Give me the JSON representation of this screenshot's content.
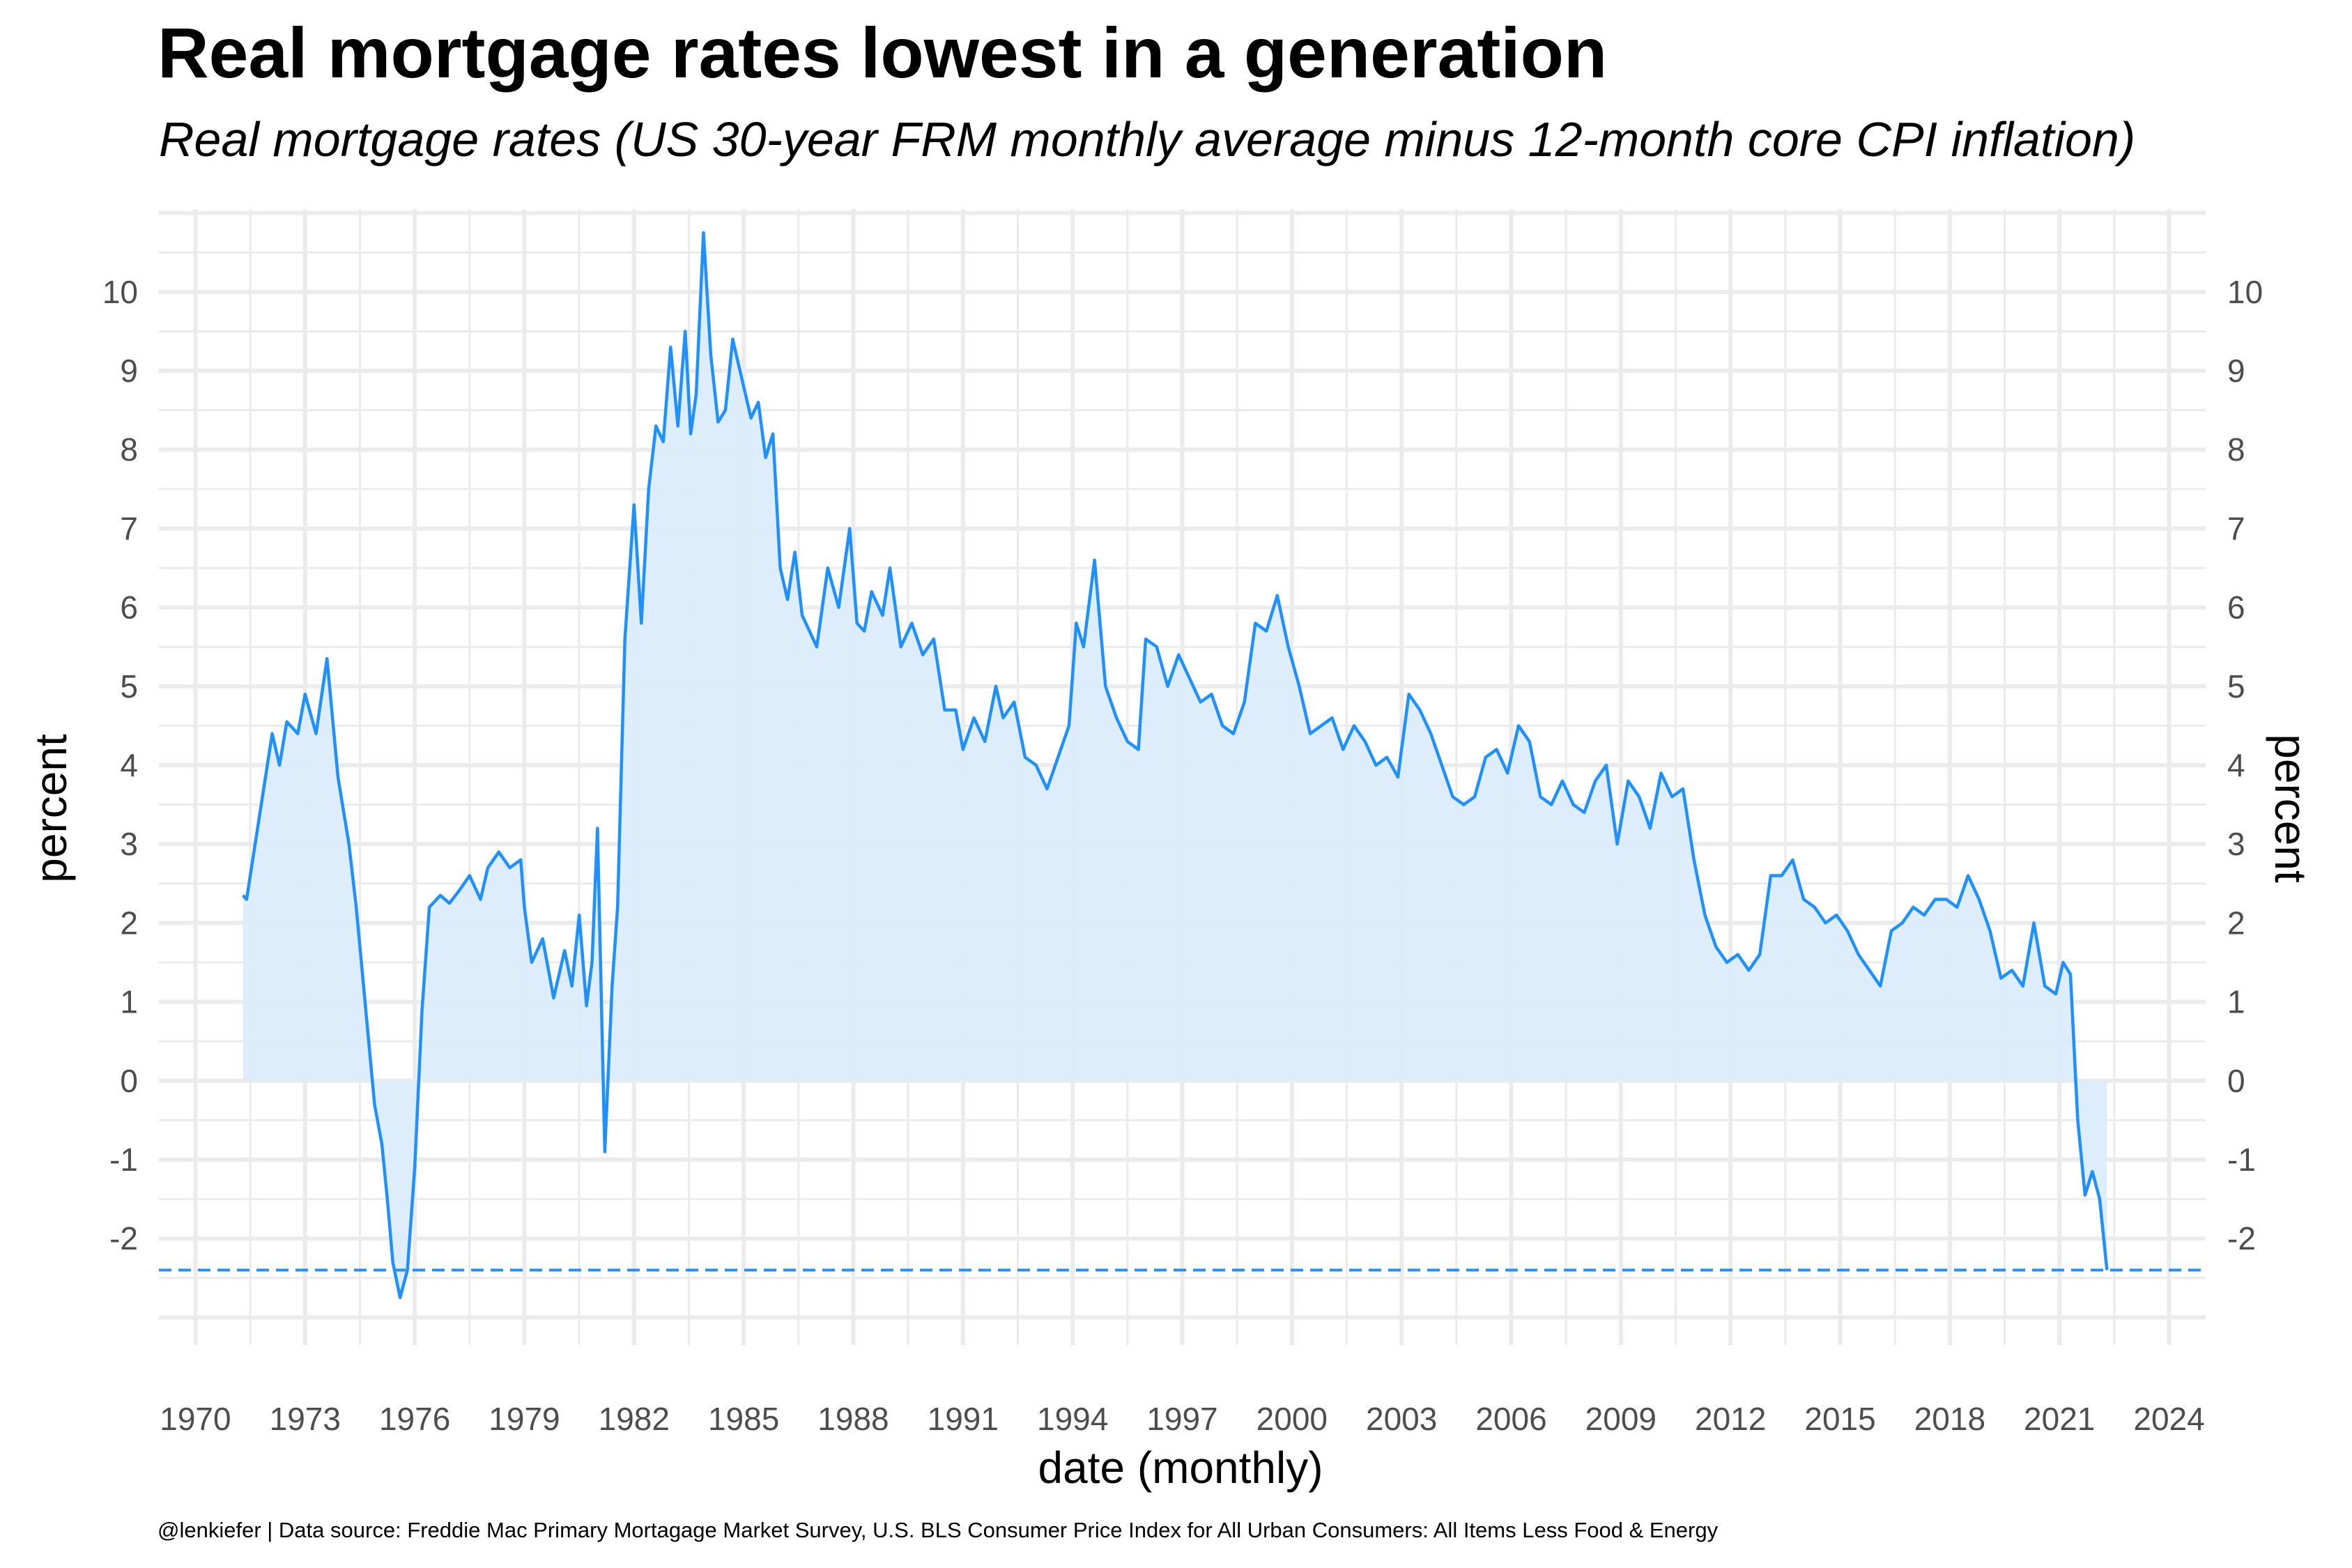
{
  "chart_data": {
    "type": "area",
    "title": "Real mortgage rates lowest in a generation",
    "subtitle": "Real mortgage rates (US 30-year FRM monthly average minus 12-month core CPI inflation)",
    "xlabel": "date (monthly)",
    "ylabel": "percent",
    "ylabel_right": "percent",
    "caption": "@lenkiefer | Data source: Freddie Mac Primary Mortagage Market Survey, U.S. BLS Consumer Price Index for All Urban Consumers: All Items Less Food & Energy",
    "x_ticks": [
      "1970",
      "1973",
      "1976",
      "1979",
      "1982",
      "1985",
      "1988",
      "1991",
      "1994",
      "1997",
      "2000",
      "2003",
      "2006",
      "2009",
      "2012",
      "2015",
      "2018",
      "2021",
      "2024"
    ],
    "y_ticks": [
      "-2",
      "-1",
      "0",
      "1",
      "2",
      "3",
      "4",
      "5",
      "6",
      "7",
      "8",
      "9",
      "10"
    ],
    "xlim": [
      1969.0,
      2025.0
    ],
    "ylim": [
      -3.35,
      11.05
    ],
    "grid": true,
    "reference_line": {
      "y": -2.4,
      "style": "dashed",
      "color": "#1e90ff"
    },
    "colors": {
      "line": "#1e90ff",
      "fill": "#dbecfb",
      "grid": "#ebebeb"
    },
    "series": [
      {
        "x": [
          1971.3,
          1971.4,
          1971.6,
          1971.9,
          1972.1,
          1972.3,
          1972.5,
          1972.8,
          1973.0,
          1973.3,
          1973.6,
          1973.9,
          1974.2,
          1974.4,
          1974.7,
          1974.9,
          1975.1,
          1975.25,
          1975.4,
          1975.6,
          1975.8,
          1976.0,
          1976.2,
          1976.4,
          1976.7,
          1976.95,
          1977.2,
          1977.5,
          1977.8,
          1978.0,
          1978.3,
          1978.6,
          1978.9,
          1979.0,
          1979.2,
          1979.5,
          1979.8,
          1980.1,
          1980.3,
          1980.5,
          1980.7,
          1980.85,
          1981.0,
          1981.2,
          1981.4,
          1981.55,
          1981.75,
          1982.0,
          1982.2,
          1982.4,
          1982.6,
          1982.8,
          1983.0,
          1983.2,
          1983.4,
          1983.55,
          1983.7,
          1983.9,
          1984.1,
          1984.3,
          1984.5,
          1984.7,
          1984.95,
          1985.2,
          1985.4,
          1985.6,
          1985.8,
          1986.0,
          1986.2,
          1986.4,
          1986.6,
          1986.8,
          1987.0,
          1987.3,
          1987.6,
          1987.9,
          1988.1,
          1988.3,
          1988.5,
          1988.8,
          1989.0,
          1989.3,
          1989.6,
          1989.9,
          1990.2,
          1990.5,
          1990.8,
          1991.0,
          1991.3,
          1991.6,
          1991.9,
          1992.1,
          1992.4,
          1992.7,
          1993.0,
          1993.3,
          1993.6,
          1993.9,
          1994.1,
          1994.3,
          1994.6,
          1994.9,
          1995.2,
          1995.5,
          1995.8,
          1996.0,
          1996.3,
          1996.6,
          1996.9,
          1997.2,
          1997.5,
          1997.8,
          1998.1,
          1998.4,
          1998.7,
          1999.0,
          1999.3,
          1999.6,
          1999.9,
          2000.2,
          2000.5,
          2000.8,
          2001.1,
          2001.4,
          2001.7,
          2002.0,
          2002.3,
          2002.6,
          2002.9,
          2003.2,
          2003.5,
          2003.8,
          2004.1,
          2004.4,
          2004.7,
          2005.0,
          2005.3,
          2005.6,
          2005.9,
          2006.2,
          2006.5,
          2006.8,
          2007.1,
          2007.4,
          2007.7,
          2008.0,
          2008.3,
          2008.6,
          2008.9,
          2009.2,
          2009.5,
          2009.8,
          2010.1,
          2010.4,
          2010.7,
          2011.0,
          2011.3,
          2011.6,
          2011.9,
          2012.2,
          2012.5,
          2012.8,
          2013.1,
          2013.4,
          2013.7,
          2014.0,
          2014.3,
          2014.6,
          2014.9,
          2015.2,
          2015.5,
          2015.8,
          2016.1,
          2016.4,
          2016.7,
          2017.0,
          2017.3,
          2017.6,
          2017.9,
          2018.2,
          2018.5,
          2018.8,
          2019.1,
          2019.4,
          2019.7,
          2020.0,
          2020.3,
          2020.6,
          2020.9,
          2021.1,
          2021.3,
          2021.5,
          2021.7,
          2021.9,
          2022.1,
          2022.3
        ],
        "y": [
          2.35,
          2.3,
          2.9,
          3.8,
          4.4,
          4.0,
          4.55,
          4.4,
          4.9,
          4.4,
          5.35,
          3.85,
          3.0,
          2.2,
          0.7,
          -0.3,
          -0.8,
          -1.5,
          -2.3,
          -2.75,
          -2.4,
          -1.1,
          0.9,
          2.2,
          2.35,
          2.25,
          2.4,
          2.6,
          2.3,
          2.7,
          2.9,
          2.7,
          2.8,
          2.2,
          1.5,
          1.8,
          1.05,
          1.65,
          1.2,
          2.1,
          0.95,
          1.5,
          3.2,
          -0.9,
          1.2,
          2.2,
          5.6,
          7.3,
          5.8,
          7.5,
          8.3,
          8.1,
          9.3,
          8.3,
          9.5,
          8.2,
          8.7,
          10.75,
          9.2,
          8.35,
          8.5,
          9.4,
          8.9,
          8.4,
          8.6,
          7.9,
          8.2,
          6.5,
          6.1,
          6.7,
          5.9,
          5.7,
          5.5,
          6.5,
          6.0,
          7.0,
          5.8,
          5.7,
          6.2,
          5.9,
          6.5,
          5.5,
          5.8,
          5.4,
          5.6,
          4.7,
          4.7,
          4.2,
          4.6,
          4.3,
          5.0,
          4.6,
          4.8,
          4.1,
          4.0,
          3.7,
          4.1,
          4.5,
          5.8,
          5.5,
          6.6,
          5.0,
          4.6,
          4.3,
          4.2,
          5.6,
          5.5,
          5.0,
          5.4,
          5.1,
          4.8,
          4.9,
          4.5,
          4.4,
          4.8,
          5.8,
          5.7,
          6.15,
          5.5,
          5.0,
          4.4,
          4.5,
          4.6,
          4.2,
          4.5,
          4.3,
          4.0,
          4.1,
          3.85,
          4.9,
          4.7,
          4.4,
          4.0,
          3.6,
          3.5,
          3.6,
          4.1,
          4.2,
          3.9,
          4.5,
          4.3,
          3.6,
          3.5,
          3.8,
          3.5,
          3.4,
          3.8,
          4.0,
          3.0,
          3.8,
          3.6,
          3.2,
          3.9,
          3.6,
          3.7,
          2.8,
          2.1,
          1.7,
          1.5,
          1.6,
          1.4,
          1.6,
          2.6,
          2.6,
          2.8,
          2.3,
          2.2,
          2.0,
          2.1,
          1.9,
          1.6,
          1.4,
          1.2,
          1.9,
          2.0,
          2.2,
          2.1,
          2.3,
          2.3,
          2.2,
          2.6,
          2.3,
          1.9,
          1.3,
          1.4,
          1.2,
          2.0,
          1.2,
          1.1,
          1.5,
          1.35,
          -0.5,
          -1.45,
          -1.15,
          -1.5,
          -2.4
        ]
      }
    ]
  }
}
